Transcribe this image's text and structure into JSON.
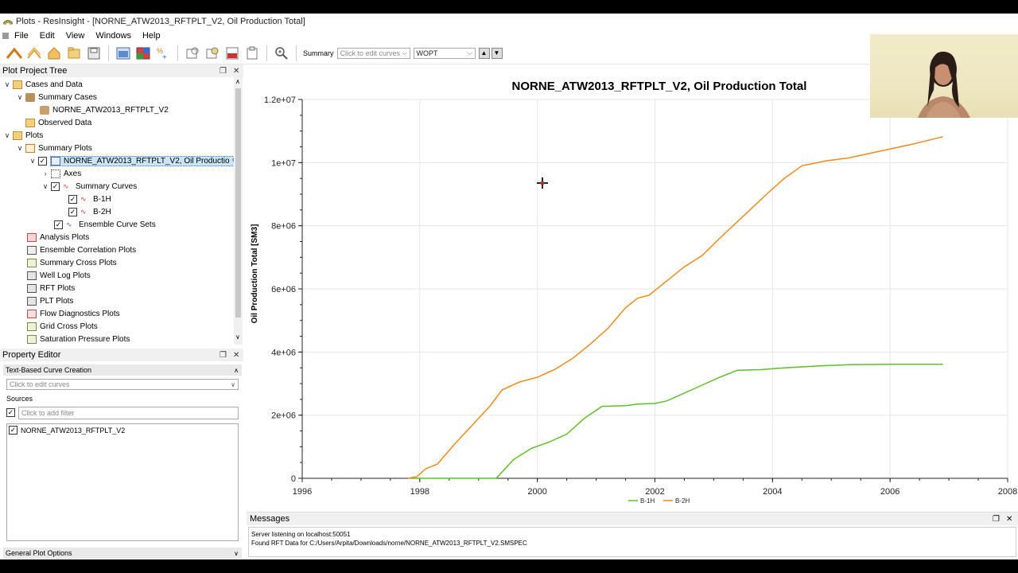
{
  "window": {
    "title": "Plots - ResInsight - [NORNE_ATW2013_RFTPLT_V2, Oil Production Total]"
  },
  "menu": {
    "items": [
      "File",
      "Edit",
      "View",
      "Windows",
      "Help"
    ]
  },
  "toolbar": {
    "summary_label": "Summary",
    "curves_placeholder": "Click to edit curves",
    "vector_value": "WOPT"
  },
  "project_tree": {
    "title": "Plot Project Tree",
    "rows": [
      {
        "label": "Cases and Data"
      },
      {
        "label": "Summary Cases"
      },
      {
        "label": "NORNE_ATW2013_RFTPLT_V2"
      },
      {
        "label": "Observed Data"
      },
      {
        "label": "Plots"
      },
      {
        "label": "Summary Plots"
      },
      {
        "label": "NORNE_ATW2013_RFTPLT_V2, Oil Productio"
      },
      {
        "label": "Axes"
      },
      {
        "label": "Summary Curves"
      },
      {
        "label": "B-1H"
      },
      {
        "label": "B-2H"
      },
      {
        "label": "Ensemble Curve Sets"
      },
      {
        "label": "Analysis Plots"
      },
      {
        "label": "Ensemble Correlation Plots"
      },
      {
        "label": "Summary Cross Plots"
      },
      {
        "label": "Well Log Plots"
      },
      {
        "label": "RFT Plots"
      },
      {
        "label": "PLT Plots"
      },
      {
        "label": "Flow Diagnostics Plots"
      },
      {
        "label": "Grid Cross Plots"
      },
      {
        "label": "Saturation Pressure Plots"
      }
    ]
  },
  "property_editor": {
    "title": "Property Editor",
    "section_text_curve": "Text-Based Curve Creation",
    "curves_placeholder": "Click to edit curves",
    "sources_label": "Sources",
    "filter_placeholder": "Click to add filter",
    "source_item": "NORNE_ATW2013_RFTPLT_V2",
    "section_general": "General Plot Options"
  },
  "messages": {
    "title": "Messages",
    "lines": [
      "Server listening on localhost:50051",
      "Found RFT Data for C:/Users/Arpita/Downloads/norne/NORNE_ATW2013_RFTPLT_V2.SMSPEC"
    ]
  },
  "chart_data": {
    "type": "line",
    "title": "NORNE_ATW2013_RFTPLT_V2, Oil Production Total",
    "ylabel": "Oil Production Total [SM3]",
    "xlabel": "",
    "xlim": [
      1996,
      2008
    ],
    "ylim": [
      0,
      12000000
    ],
    "x_ticks": [
      "1996",
      "1998",
      "2000",
      "2002",
      "2004",
      "2006",
      "2008"
    ],
    "y_ticks": [
      "0",
      "2e+06",
      "4e+06",
      "6e+06",
      "8e+06",
      "1e+07",
      "1.2e+07"
    ],
    "grid": true,
    "legend_position": "bottom-center",
    "series": [
      {
        "name": "B-1H",
        "color": "#5fbf2a",
        "points": [
          [
            1997.85,
            0
          ],
          [
            1999.3,
            0
          ],
          [
            1999.6,
            600000
          ],
          [
            1999.9,
            950000
          ],
          [
            2000.2,
            1150000
          ],
          [
            2000.5,
            1400000
          ],
          [
            2000.8,
            1900000
          ],
          [
            2001.1,
            2280000
          ],
          [
            2001.5,
            2300000
          ],
          [
            2001.7,
            2350000
          ],
          [
            2002.0,
            2370000
          ],
          [
            2002.2,
            2450000
          ],
          [
            2002.5,
            2700000
          ],
          [
            2002.8,
            2950000
          ],
          [
            2003.1,
            3200000
          ],
          [
            2003.4,
            3420000
          ],
          [
            2003.8,
            3440000
          ],
          [
            2004.2,
            3500000
          ],
          [
            2004.8,
            3560000
          ],
          [
            2005.3,
            3600000
          ],
          [
            2006.0,
            3610000
          ],
          [
            2006.9,
            3610000
          ]
        ]
      },
      {
        "name": "B-2H",
        "color": "#f0891c",
        "points": [
          [
            1997.8,
            0
          ],
          [
            1997.95,
            50000
          ],
          [
            1998.1,
            300000
          ],
          [
            1998.3,
            450000
          ],
          [
            1998.6,
            1100000
          ],
          [
            1998.9,
            1700000
          ],
          [
            1999.2,
            2300000
          ],
          [
            1999.4,
            2800000
          ],
          [
            1999.7,
            3050000
          ],
          [
            2000.0,
            3200000
          ],
          [
            2000.3,
            3450000
          ],
          [
            2000.6,
            3800000
          ],
          [
            2000.9,
            4250000
          ],
          [
            2001.2,
            4750000
          ],
          [
            2001.5,
            5400000
          ],
          [
            2001.7,
            5700000
          ],
          [
            2001.9,
            5800000
          ],
          [
            2002.2,
            6250000
          ],
          [
            2002.5,
            6700000
          ],
          [
            2002.8,
            7050000
          ],
          [
            2003.1,
            7600000
          ],
          [
            2003.5,
            8300000
          ],
          [
            2003.9,
            9000000
          ],
          [
            2004.2,
            9500000
          ],
          [
            2004.5,
            9900000
          ],
          [
            2004.9,
            10050000
          ],
          [
            2005.3,
            10150000
          ],
          [
            2005.8,
            10350000
          ],
          [
            2006.3,
            10550000
          ],
          [
            2006.9,
            10820000
          ]
        ]
      }
    ]
  }
}
